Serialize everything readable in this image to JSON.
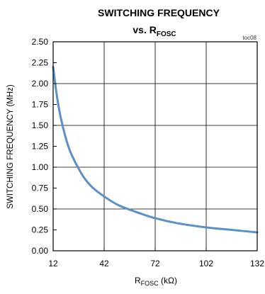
{
  "chart_data": {
    "type": "line",
    "title": {
      "line1": "SWITCHING FREQUENCY",
      "line2_prefix": "vs. R",
      "line2_sub": "FOSC"
    },
    "chart_id": "toc08",
    "xlabel": {
      "prefix": "R",
      "sub": "FOSC",
      "suffix": " (kΩ)"
    },
    "ylabel": "SWITCHING FREQUENCY (MHz)",
    "xlim": [
      12,
      132
    ],
    "ylim": [
      0,
      2.5
    ],
    "x_ticks": [
      12,
      42,
      72,
      102,
      132
    ],
    "x_tick_labels": [
      "12",
      "42",
      "72",
      "102",
      "132"
    ],
    "y_ticks": [
      0,
      0.25,
      0.5,
      0.75,
      1.0,
      1.25,
      1.5,
      1.75,
      2.0,
      2.25,
      2.5
    ],
    "y_tick_labels": [
      "0.00",
      "0.25",
      "0.50",
      "0.75",
      "1.00",
      "1.25",
      "1.50",
      "1.75",
      "2.00",
      "2.25",
      "2.50"
    ],
    "grid": true,
    "series": [
      {
        "color": "#5b8fc7",
        "x": [
          12,
          14,
          16,
          18,
          20,
          22,
          24,
          26,
          30,
          35,
          42,
          50,
          60,
          72,
          85,
          102,
          117,
          132
        ],
        "y": [
          2.2,
          1.88,
          1.64,
          1.46,
          1.31,
          1.19,
          1.1,
          1.02,
          0.88,
          0.76,
          0.65,
          0.55,
          0.47,
          0.39,
          0.33,
          0.28,
          0.25,
          0.22
        ]
      }
    ]
  }
}
